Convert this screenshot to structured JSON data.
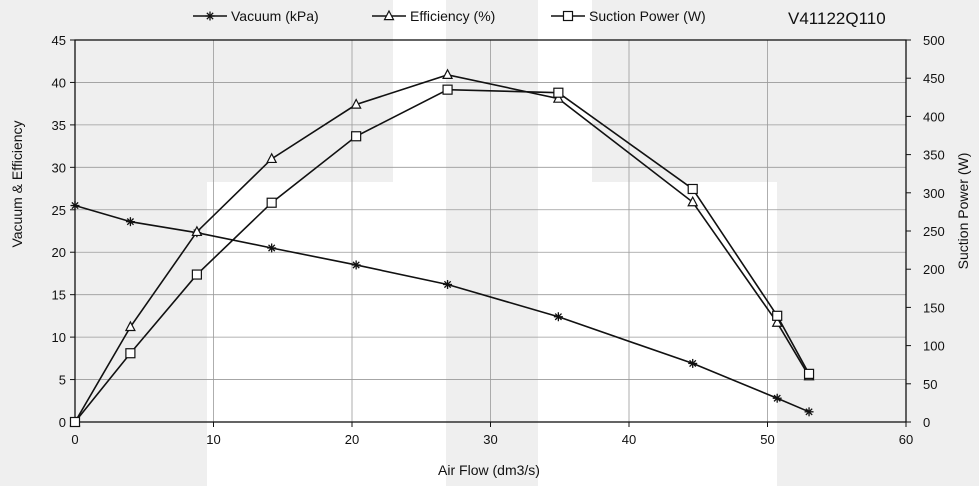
{
  "model_label": "V41122Q110",
  "chart_data": {
    "type": "line",
    "xlabel": "Air Flow (dm3/s)",
    "ylabel": "Vacuum & Efficiency",
    "y2label": "Suction Power  (W)",
    "xlim": [
      0,
      60
    ],
    "ylim": [
      0,
      45
    ],
    "y2lim": [
      0,
      500
    ],
    "xticks": [
      0,
      10,
      20,
      30,
      40,
      50,
      60
    ],
    "yticks": [
      0,
      5,
      10,
      15,
      20,
      25,
      30,
      35,
      40,
      45
    ],
    "y2ticks": [
      0,
      50,
      100,
      150,
      200,
      250,
      300,
      350,
      400,
      450,
      500
    ],
    "grid": true,
    "legend_position": "top",
    "series": [
      {
        "name": "Vacuum (kPa)",
        "axis": "left",
        "marker": "asterisk",
        "x": [
          0,
          4,
          8.8,
          14.2,
          20.3,
          26.9,
          34.9,
          44.6,
          50.7,
          53
        ],
        "y": [
          25.5,
          23.6,
          22.3,
          20.5,
          18.5,
          16.2,
          12.4,
          6.9,
          2.8,
          1.2
        ]
      },
      {
        "name": "Efficiency (%)",
        "axis": "left",
        "marker": "triangle",
        "x": [
          0,
          4,
          8.8,
          14.2,
          20.3,
          26.9,
          34.9,
          44.6,
          50.7,
          53
        ],
        "y": [
          0,
          11.2,
          22.4,
          31,
          37.4,
          40.9,
          38.1,
          25.9,
          11.7,
          5.4
        ]
      },
      {
        "name": "Suction Power (W)",
        "axis": "right",
        "marker": "square",
        "x": [
          0,
          4,
          8.8,
          14.2,
          20.3,
          26.9,
          34.9,
          44.6,
          50.7,
          53
        ],
        "y": [
          0,
          90,
          193,
          287,
          374,
          435,
          431,
          305,
          139,
          63
        ]
      }
    ]
  }
}
